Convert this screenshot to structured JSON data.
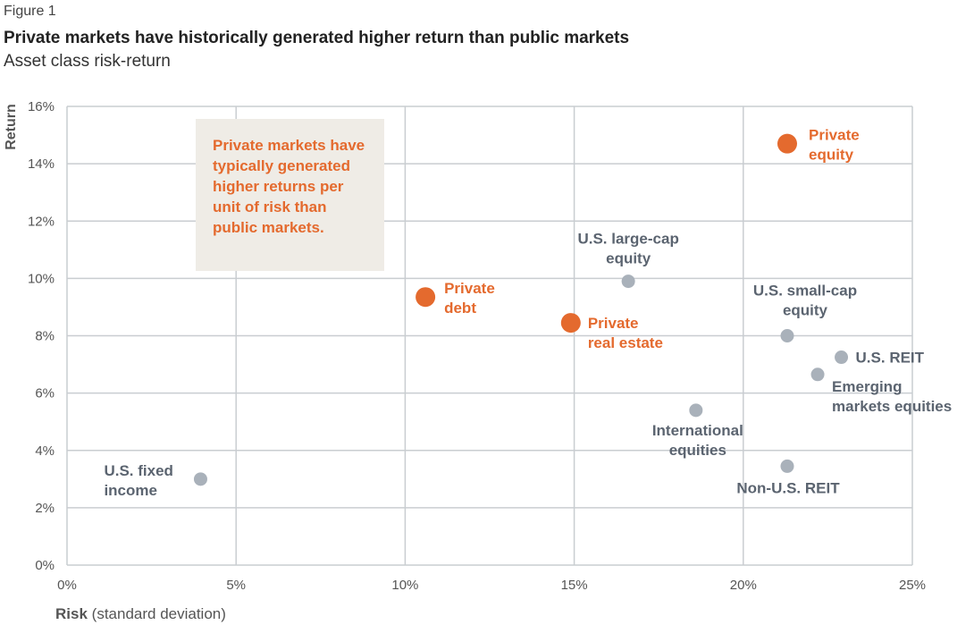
{
  "figure_label": "Figure 1",
  "title": "Private markets have historically generated higher return than public markets",
  "subtitle": "Asset class risk-return",
  "callout": "Private markets have typically generated higher returns per unit of risk than public markets.",
  "colors": {
    "private": "#e46a2e",
    "public": "#a9b1ba",
    "public_label": "#5b6470",
    "grid": "#c9cdd1"
  },
  "chart_data": {
    "type": "scatter",
    "xlabel_bold": "Risk",
    "xlabel_rest": "(standard deviation)",
    "ylabel": "Return",
    "xlim": [
      0,
      25
    ],
    "ylim": [
      0,
      16
    ],
    "x_ticks": [
      0,
      5,
      10,
      15,
      20,
      25
    ],
    "x_tick_labels": [
      "0%",
      "5%",
      "10%",
      "15%",
      "20%",
      "25%"
    ],
    "y_ticks": [
      0,
      2,
      4,
      6,
      8,
      10,
      12,
      14,
      16
    ],
    "y_tick_labels": [
      "0%",
      "2%",
      "4%",
      "6%",
      "8%",
      "10%",
      "12%",
      "14%",
      "16%"
    ],
    "grid": true,
    "points": [
      {
        "label": [
          "Private",
          "equity"
        ],
        "x": 21.3,
        "y": 14.7,
        "group": "private"
      },
      {
        "label": [
          "Private",
          "debt"
        ],
        "x": 10.6,
        "y": 9.35,
        "group": "private"
      },
      {
        "label": [
          "Private",
          "real estate"
        ],
        "x": 14.9,
        "y": 8.45,
        "group": "private"
      },
      {
        "label": [
          "U.S. large-cap",
          "equity"
        ],
        "x": 16.6,
        "y": 9.9,
        "group": "public"
      },
      {
        "label": [
          "U.S. small-cap",
          "equity"
        ],
        "x": 21.3,
        "y": 8.0,
        "group": "public"
      },
      {
        "label": [
          "U.S. REIT"
        ],
        "x": 22.9,
        "y": 7.25,
        "group": "public"
      },
      {
        "label": [
          "Emerging",
          "markets equities"
        ],
        "x": 22.2,
        "y": 6.65,
        "group": "public"
      },
      {
        "label": [
          "International",
          "equities"
        ],
        "x": 18.6,
        "y": 5.4,
        "group": "public"
      },
      {
        "label": [
          "Non-U.S. REIT"
        ],
        "x": 21.3,
        "y": 3.45,
        "group": "public"
      },
      {
        "label": [
          "U.S. fixed",
          "income"
        ],
        "x": 3.95,
        "y": 3.0,
        "group": "public"
      }
    ]
  }
}
